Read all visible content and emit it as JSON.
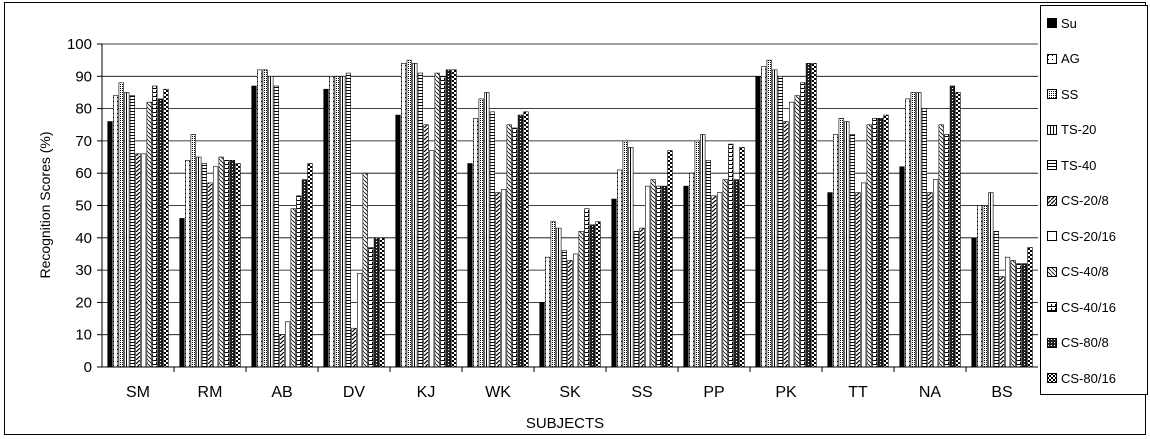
{
  "chart_data": {
    "type": "bar",
    "title": "",
    "xlabel": "SUBJECTS",
    "ylabel": "Recognition Scores (%)",
    "ylim": [
      0,
      100
    ],
    "yticks": [
      "0",
      "10",
      "20",
      "30",
      "40",
      "50",
      "60",
      "70",
      "80",
      "90",
      "100"
    ],
    "grid": "horizontal",
    "legend_placement": "right",
    "categories": [
      "SM",
      "RM",
      "AB",
      "DV",
      "KJ",
      "WK",
      "SK",
      "SS",
      "PP",
      "PK",
      "TT",
      "NA",
      "BS"
    ],
    "series": [
      {
        "name": "Su",
        "pattern": "solid-black",
        "values": [
          76,
          46,
          87,
          86,
          78,
          63,
          20,
          52,
          56,
          90,
          54,
          62,
          40
        ]
      },
      {
        "name": "AG",
        "pattern": "dots-light",
        "values": [
          84,
          64,
          92,
          90,
          94,
          77,
          34,
          61,
          60,
          93,
          72,
          83,
          50
        ]
      },
      {
        "name": "SS",
        "pattern": "dots-dense",
        "values": [
          88,
          72,
          92,
          90,
          95,
          83,
          45,
          70,
          70,
          95,
          77,
          85,
          50
        ]
      },
      {
        "name": "TS-20",
        "pattern": "vertical-lines",
        "values": [
          85,
          65,
          90,
          90,
          94,
          85,
          43,
          68,
          72,
          92,
          76,
          85,
          54
        ]
      },
      {
        "name": "TS-40",
        "pattern": "horizontal-lines",
        "values": [
          84,
          63,
          87,
          91,
          91,
          79,
          36,
          42,
          64,
          90,
          72,
          80,
          42
        ]
      },
      {
        "name": "CS-20/8",
        "pattern": "diagonal",
        "values": [
          66,
          57,
          10,
          12,
          75,
          54,
          33,
          43,
          53,
          76,
          54,
          54,
          28
        ]
      },
      {
        "name": "CS-20/16",
        "pattern": "outline-white",
        "values": [
          66,
          62,
          14,
          29,
          67,
          55,
          35,
          56,
          54,
          82,
          57,
          58,
          34
        ]
      },
      {
        "name": "CS-40/8",
        "pattern": "diagonal-dots",
        "values": [
          82,
          65,
          49,
          60,
          91,
          75,
          42,
          58,
          58,
          84,
          75,
          75,
          33
        ]
      },
      {
        "name": "CS-40/16",
        "pattern": "brick",
        "values": [
          87,
          64,
          53,
          37,
          90,
          74,
          49,
          56,
          69,
          88,
          77,
          72,
          32
        ]
      },
      {
        "name": "CS-80/8",
        "pattern": "dark-grid",
        "values": [
          83,
          64,
          58,
          40,
          92,
          78,
          44,
          56,
          58,
          94,
          77,
          87,
          32
        ]
      },
      {
        "name": "CS-80/16",
        "pattern": "checker",
        "values": [
          86,
          63,
          63,
          40,
          92,
          79,
          45,
          67,
          68,
          94,
          78,
          85,
          37
        ]
      }
    ]
  }
}
